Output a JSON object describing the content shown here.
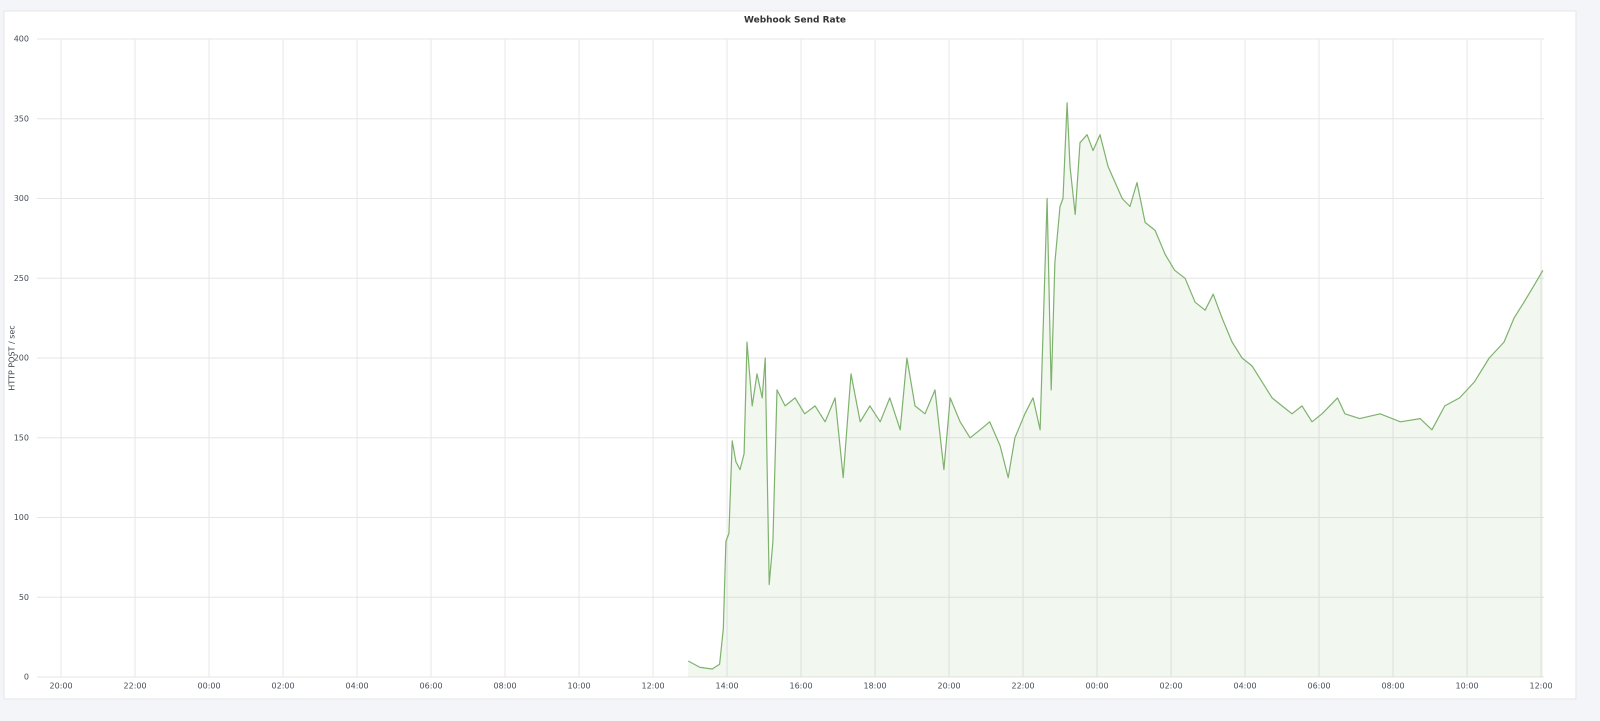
{
  "chart_data": {
    "type": "line",
    "title": "Webhook Send Rate",
    "y_label": "HTTP POST / sec",
    "xlim": [
      -0.65,
      40.08
    ],
    "xticks": [
      {
        "value": 0,
        "label": "20:00"
      },
      {
        "value": 2,
        "label": "22:00"
      },
      {
        "value": 4,
        "label": "00:00"
      },
      {
        "value": 6,
        "label": "02:00"
      },
      {
        "value": 8,
        "label": "04:00"
      },
      {
        "value": 10,
        "label": "06:00"
      },
      {
        "value": 12,
        "label": "08:00"
      },
      {
        "value": 14,
        "label": "10:00"
      },
      {
        "value": 16,
        "label": "12:00"
      },
      {
        "value": 18,
        "label": "14:00"
      },
      {
        "value": 20,
        "label": "16:00"
      },
      {
        "value": 22,
        "label": "18:00"
      },
      {
        "value": 24,
        "label": "20:00"
      },
      {
        "value": 26,
        "label": "22:00"
      },
      {
        "value": 28,
        "label": "00:00"
      },
      {
        "value": 30,
        "label": "02:00"
      },
      {
        "value": 32,
        "label": "04:00"
      },
      {
        "value": 34,
        "label": "06:00"
      },
      {
        "value": 36,
        "label": "08:00"
      },
      {
        "value": 38,
        "label": "10:00"
      },
      {
        "value": 40,
        "label": "12:00"
      }
    ],
    "ylim": [
      0,
      400
    ],
    "yticks": [
      0,
      50,
      100,
      150,
      200,
      250,
      300,
      350,
      400
    ],
    "grid": true,
    "fill_area": true,
    "series": [
      {
        "color": "#7eb26d",
        "x": [
          16.95,
          17.27,
          17.6,
          17.8,
          17.9,
          17.97,
          18.05,
          18.14,
          18.24,
          18.35,
          18.46,
          18.54,
          18.68,
          18.81,
          18.95,
          19.03,
          19.14,
          19.24,
          19.35,
          19.57,
          19.84,
          20.1,
          20.38,
          20.65,
          20.92,
          21.14,
          21.35,
          21.6,
          21.86,
          22.14,
          22.4,
          22.68,
          22.86,
          23.08,
          23.35,
          23.62,
          23.86,
          24.03,
          24.3,
          24.57,
          24.84,
          25.1,
          25.38,
          25.6,
          25.78,
          26.05,
          26.27,
          26.46,
          26.65,
          26.76,
          26.86,
          27.0,
          27.08,
          27.19,
          27.27,
          27.41,
          27.54,
          27.73,
          27.89,
          28.08,
          28.3,
          28.49,
          28.68,
          28.89,
          29.08,
          29.3,
          29.57,
          29.84,
          30.1,
          30.38,
          30.65,
          30.92,
          31.14,
          31.38,
          31.65,
          31.92,
          32.19,
          32.46,
          32.73,
          33.0,
          33.27,
          33.54,
          33.81,
          34.08,
          34.5,
          34.7,
          35.1,
          35.65,
          36.2,
          36.73,
          37.05,
          37.4,
          37.8,
          38.2,
          38.6,
          39.0,
          39.27,
          39.54,
          39.8,
          40.05
        ],
        "values": [
          10,
          6,
          5,
          8,
          30,
          85,
          90,
          148,
          135,
          130,
          140,
          210,
          170,
          190,
          175,
          200,
          58,
          85,
          180,
          170,
          175,
          165,
          170,
          160,
          175,
          125,
          190,
          160,
          170,
          160,
          175,
          155,
          200,
          170,
          165,
          180,
          130,
          175,
          160,
          150,
          155,
          160,
          145,
          125,
          150,
          165,
          175,
          155,
          300,
          180,
          260,
          295,
          300,
          360,
          320,
          290,
          335,
          340,
          330,
          340,
          320,
          310,
          300,
          295,
          310,
          285,
          280,
          265,
          255,
          250,
          235,
          230,
          240,
          225,
          210,
          200,
          195,
          185,
          175,
          170,
          165,
          170,
          160,
          165,
          175,
          165,
          162,
          165,
          160,
          162,
          155,
          170,
          175,
          185,
          200,
          210,
          225,
          235,
          245,
          255
        ]
      }
    ]
  }
}
